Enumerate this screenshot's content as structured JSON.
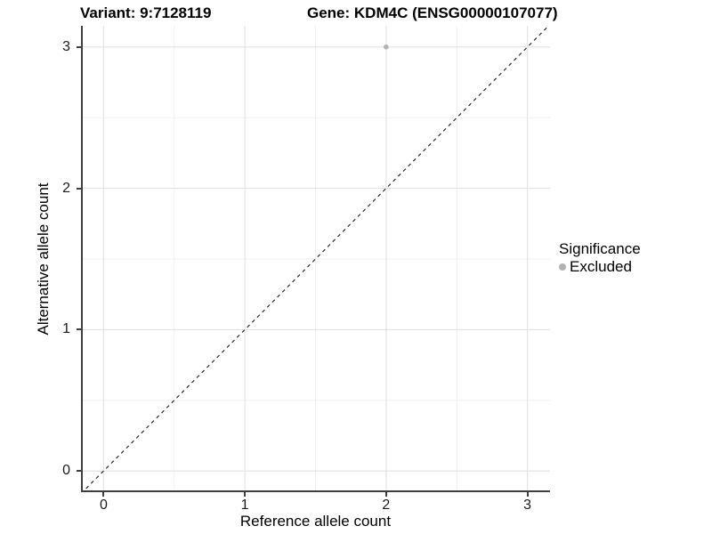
{
  "figure": {
    "title_left": "Variant: 9:7128119",
    "title_right": "Gene: KDM4C (ENSG00000107077)"
  },
  "chart_data": {
    "type": "scatter",
    "title_left": "Variant: 9:7128119",
    "title_right": "Gene: KDM4C (ENSG00000107077)",
    "xlabel": "Reference allele count",
    "ylabel": "Alternative allele count",
    "xlim": [
      -0.16,
      3.16
    ],
    "ylim": [
      -0.15,
      3.15
    ],
    "xticks": [
      0,
      1,
      2,
      3
    ],
    "yticks": [
      0,
      1,
      2,
      3
    ],
    "xminor": [
      0.5,
      1.5,
      2.5
    ],
    "yminor": [
      0.5,
      1.5,
      2.5
    ],
    "grid": "major and minor gridlines on white background",
    "legend_position": "right",
    "series": [
      {
        "name": "Excluded",
        "color": "#b3b3b3",
        "points": [
          {
            "x": 2,
            "y": 3
          }
        ]
      }
    ],
    "reference_line": {
      "type": "abline",
      "slope": 1,
      "intercept": 0,
      "linetype": "dashed",
      "color": "#1a1a1a"
    }
  },
  "legend": {
    "title": "Significance",
    "items": [
      {
        "label": "Excluded",
        "color": "#b3b3b3"
      }
    ]
  },
  "colors": {
    "background": "#ffffff",
    "grid_major": "#e2e2e2",
    "grid_minor": "#efefef",
    "axis_line": "#3f3f3f",
    "point": "#b3b3b3",
    "text": "#000000"
  }
}
